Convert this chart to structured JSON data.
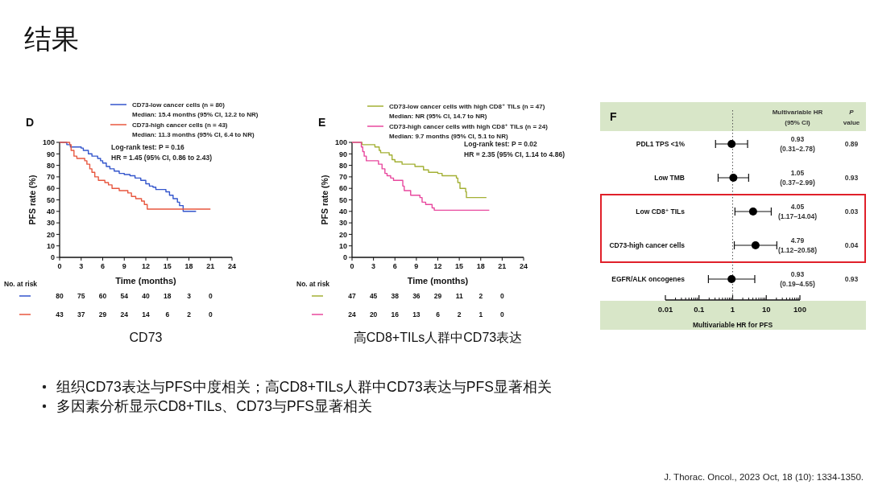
{
  "chart_data": [
    {
      "type": "step",
      "title": "D",
      "xlabel": "Time (months)",
      "ylabel": "PFS rate (%)",
      "xlim": [
        0,
        24
      ],
      "xticks": [
        0,
        3,
        6,
        9,
        12,
        15,
        18,
        21,
        24
      ],
      "ylim": [
        0,
        100
      ],
      "yticks": [
        0,
        10,
        20,
        30,
        40,
        50,
        60,
        70,
        80,
        90,
        100
      ],
      "legend": "top",
      "series": [
        {
          "name": "CD73-low cancer cells (n = 80)",
          "color": "#3355cc",
          "x": [
            0,
            1.0,
            1.5,
            3.0,
            3.3,
            4.0,
            4.5,
            5.3,
            5.7,
            6.0,
            6.5,
            7.0,
            7.6,
            8.3,
            9.0,
            9.8,
            10.5,
            11.3,
            12.0,
            12.5,
            13.0,
            13.4,
            14.8,
            15.3,
            15.8,
            16.4,
            16.7,
            17.2,
            19.0
          ],
          "values": [
            100,
            98,
            96,
            95,
            93,
            90,
            88,
            86,
            84,
            82,
            79,
            77,
            75,
            73,
            72,
            71,
            69,
            67,
            64,
            62,
            61,
            59,
            57,
            54,
            51,
            48,
            45,
            40,
            40
          ]
        },
        {
          "name": "CD73-high cancer cells (n = 43)",
          "color": "#e8573f",
          "x": [
            0,
            1.4,
            1.6,
            2.0,
            2.4,
            3.5,
            3.8,
            4.2,
            4.5,
            4.9,
            5.4,
            6.3,
            6.8,
            7.3,
            8.3,
            9.5,
            10.0,
            10.6,
            11.4,
            11.8,
            12.2,
            21.0
          ],
          "values": [
            100,
            98,
            93,
            88,
            86,
            84,
            81,
            77,
            74,
            70,
            67,
            65,
            63,
            60,
            58,
            56,
            53,
            51,
            49,
            46,
            42,
            42
          ]
        }
      ],
      "annotations": [
        "Median: 15.4 months (95% CI, 12.2 to NR)",
        "Median: 11.3 months (95% CI, 6.4 to NR)",
        "Log-rank test: P = 0.16",
        "HR = 1.45 (95% CI, 0.86 to 2.43)",
        "No. at risk",
        "80 75 60 54 40 18 3 0",
        "43 37 29 24 14 6 2 0",
        "CD73",
        "结果",
        "组织CD73表达与PFS中度相关；高CD8+TILs人群中CD73表达与PFS显著相关",
        "多因素分析显示CD8+TILs、CD73与PFS显著相关",
        "J. Thorac. Oncol., 2023 Oct, 18 (10): 1334-1350."
      ]
    },
    {
      "type": "step",
      "title": "E",
      "xlabel": "Time (months)",
      "ylabel": "PFS rate (%)",
      "xlim": [
        0,
        24
      ],
      "xticks": [
        0,
        3,
        6,
        9,
        12,
        15,
        18,
        21,
        24
      ],
      "ylim": [
        0,
        100
      ],
      "yticks": [
        0,
        10,
        20,
        30,
        40,
        50,
        60,
        70,
        80,
        90,
        100
      ],
      "legend": "top",
      "series": [
        {
          "name": "CD73-low cancer cells with high CD8⁺ TILs (n = 47)",
          "color": "#a3b034",
          "x": [
            0,
            1.4,
            3.2,
            3.8,
            4.0,
            5.2,
            5.6,
            6.0,
            7.0,
            8.8,
            10.0,
            10.7,
            12.0,
            12.6,
            14.6,
            14.8,
            15.1,
            15.9,
            16.0,
            18.8
          ],
          "values": [
            100,
            98,
            96,
            93,
            91,
            89,
            85,
            83,
            81,
            79,
            76,
            74,
            73,
            71,
            69,
            65,
            60,
            57,
            52,
            52
          ]
        },
        {
          "name": "CD73-high cancer cells with high CD8⁺ TILs (n = 24)",
          "color": "#e8489e",
          "x": [
            0,
            1.3,
            1.5,
            1.7,
            2.0,
            3.7,
            4.2,
            4.6,
            4.9,
            5.4,
            5.8,
            7.1,
            7.3,
            8.2,
            9.5,
            9.8,
            10.3,
            11.2,
            11.5,
            19.2
          ],
          "values": [
            100,
            96,
            92,
            88,
            84,
            81,
            77,
            73,
            71,
            69,
            67,
            62,
            58,
            54,
            52,
            48,
            46,
            43,
            41,
            41
          ]
        }
      ],
      "annotations": [
        "Median: NR (95% CI, 14.7 to NR)",
        "Median: 9.7 months (95% CI, 5.1 to NR)",
        "Log-rank test: P = 0.02",
        "HR = 2.35 (95% CI, 1.14 to 4.86)",
        "No. at risk",
        "47 45 38 36 29 11 2 0",
        "24 20 16 13 6 2 1 0",
        "高CD8+TILs人群中CD73表达"
      ]
    },
    {
      "type": "scatter",
      "title": "F",
      "orientation": "horizontal",
      "log": "x",
      "marker": "circle",
      "color": "#000000",
      "categories": [
        "PDL1 TPS <1%",
        "Low TMB",
        "Low CD8⁺ TILs",
        "CD73-high cancer cells",
        "EGFR/ALK oncogenes"
      ],
      "values": [
        0.93,
        1.05,
        4.05,
        4.79,
        0.93
      ],
      "errors": [
        [
          0.31,
          2.78
        ],
        [
          0.37,
          2.99
        ],
        [
          1.17,
          14.04
        ],
        [
          1.12,
          20.58
        ],
        [
          0.19,
          4.55
        ]
      ],
      "xlim": [
        0.01,
        100
      ],
      "xticks": [
        0.01,
        0.1,
        1,
        10,
        100
      ],
      "xlabel": "Multivariable HR for PFS",
      "ref_lines": [
        {
          "axis": "x",
          "value": 1,
          "line_style": "dotted"
        }
      ],
      "annotations": [
        "Multivariable HR (95% CI)",
        "P value",
        "0.89",
        "0.93",
        "0.03",
        "0.04",
        "0.93",
        "0.93 (0.31–2.78)",
        "1.05 (0.37–2.99)",
        "4.05 (1.17–14.04)",
        "4.79 (1.12–20.58)",
        "0.93 (0.19–4.55)"
      ]
    }
  ]
}
